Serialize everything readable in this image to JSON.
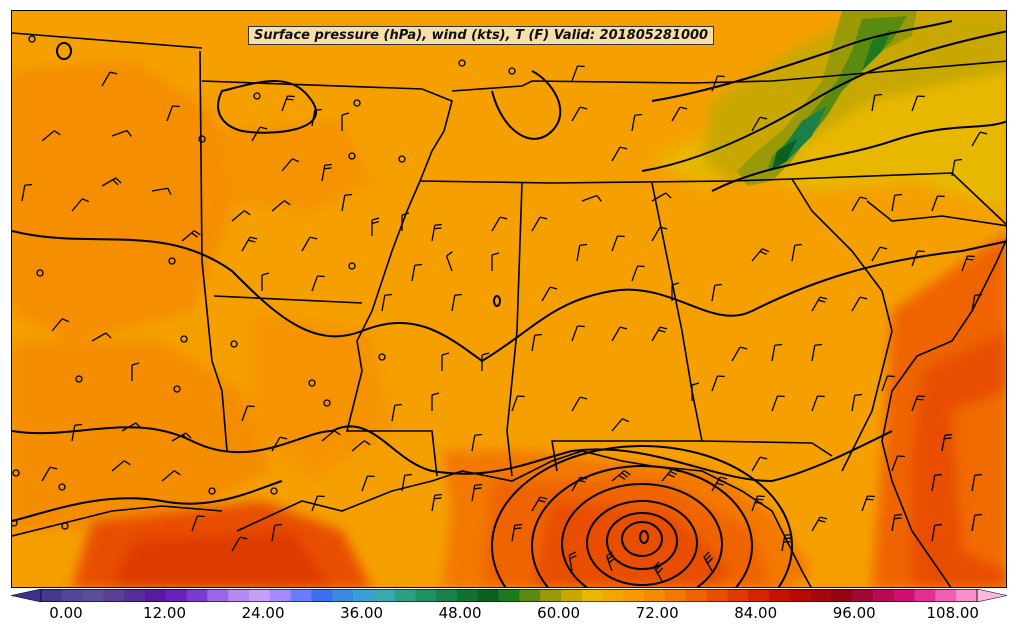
{
  "title": "Surface pressure (hPa), wind (kts), T (F) Valid: 201805281000",
  "colorbar": {
    "min": -3,
    "max": 114,
    "step": 3,
    "extend": "both",
    "tick_labels": [
      "0.00",
      "12.00",
      "24.00",
      "36.00",
      "48.00",
      "60.00",
      "72.00",
      "84.00",
      "96.00",
      "108.00"
    ],
    "tick_values": [
      0,
      12,
      24,
      36,
      48,
      60,
      72,
      84,
      96,
      108
    ],
    "colors": [
      "#3b2f8f",
      "#45388f",
      "#524593",
      "#5b4e98",
      "#5a3f96",
      "#552d96",
      "#5a1aa0",
      "#6a1fb8",
      "#7a3bd0",
      "#9a66e8",
      "#b58af0",
      "#c89ef5",
      "#a58aff",
      "#6a7bff",
      "#3f6ff0",
      "#3a8ae0",
      "#3a9fd8",
      "#3aa8b0",
      "#2aa080",
      "#1f9060",
      "#1a7f48",
      "#137035",
      "#0b6020",
      "#1e7a1e",
      "#5a8a10",
      "#9a9a08",
      "#c8a800",
      "#e8b800",
      "#f0a800",
      "#f49a00",
      "#f58a00",
      "#f37800",
      "#ef6400",
      "#e84e00",
      "#de3a00",
      "#d42400",
      "#c81200",
      "#b80a05",
      "#a5080c",
      "#920614",
      "#a00a30",
      "#b80a50",
      "#d01070",
      "#e03090",
      "#ee60b0",
      "#f590c8",
      "#f9b8dc"
    ]
  },
  "map": {
    "region": "Southeastern United States",
    "fields": [
      "surface temperature (F) shaded",
      "surface pressure (hPa) contours",
      "wind barbs (kts)"
    ]
  }
}
